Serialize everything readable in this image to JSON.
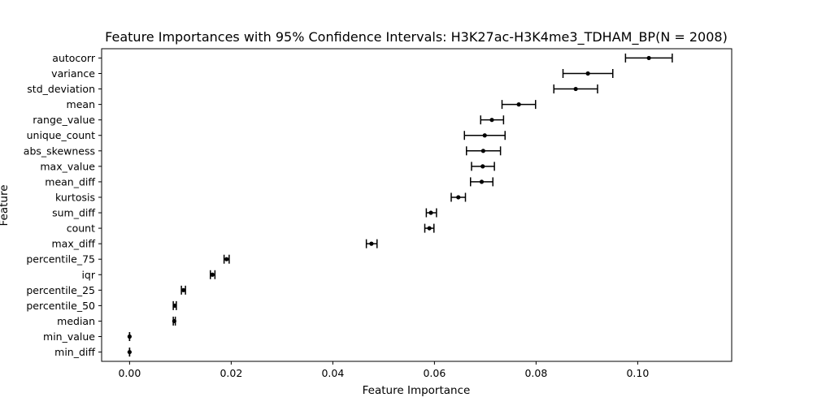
{
  "chart_data": {
    "type": "scatter",
    "title": "Feature Importances with 95% Confidence Intervals: H3K27ac-H3K4me3_TDHAM_BP(N = 2008)",
    "xlabel": "Feature Importance",
    "ylabel": "Feature",
    "xlim": [
      -0.0055,
      0.1185
    ],
    "xticks": [
      0.0,
      0.02,
      0.04,
      0.06,
      0.08,
      0.1
    ],
    "xtick_labels": [
      "0.00",
      "0.02",
      "0.04",
      "0.06",
      "0.08",
      "0.10"
    ],
    "grid": false,
    "legend": "none",
    "color": "#000000",
    "points": [
      {
        "feature": "autocorr",
        "value": 0.1022,
        "ci_low": 0.0976,
        "ci_high": 0.1068
      },
      {
        "feature": "variance",
        "value": 0.0902,
        "ci_low": 0.0853,
        "ci_high": 0.0951
      },
      {
        "feature": "std_deviation",
        "value": 0.0878,
        "ci_low": 0.0835,
        "ci_high": 0.0921
      },
      {
        "feature": "mean",
        "value": 0.0766,
        "ci_low": 0.0733,
        "ci_high": 0.0799
      },
      {
        "feature": "range_value",
        "value": 0.0713,
        "ci_low": 0.0691,
        "ci_high": 0.0736
      },
      {
        "feature": "unique_count",
        "value": 0.0699,
        "ci_low": 0.0659,
        "ci_high": 0.0739
      },
      {
        "feature": "abs_skewness",
        "value": 0.0696,
        "ci_low": 0.0663,
        "ci_high": 0.073
      },
      {
        "feature": "max_value",
        "value": 0.0695,
        "ci_low": 0.0673,
        "ci_high": 0.0718
      },
      {
        "feature": "mean_diff",
        "value": 0.0693,
        "ci_low": 0.0671,
        "ci_high": 0.0715
      },
      {
        "feature": "kurtosis",
        "value": 0.0647,
        "ci_low": 0.0633,
        "ci_high": 0.0661
      },
      {
        "feature": "sum_diff",
        "value": 0.0593,
        "ci_low": 0.0584,
        "ci_high": 0.0604
      },
      {
        "feature": "count",
        "value": 0.059,
        "ci_low": 0.0581,
        "ci_high": 0.0599
      },
      {
        "feature": "max_diff",
        "value": 0.0476,
        "ci_low": 0.0466,
        "ci_high": 0.0487
      },
      {
        "feature": "percentile_75",
        "value": 0.0191,
        "ci_low": 0.0186,
        "ci_high": 0.0196
      },
      {
        "feature": "iqr",
        "value": 0.0163,
        "ci_low": 0.0159,
        "ci_high": 0.0168
      },
      {
        "feature": "percentile_25",
        "value": 0.0106,
        "ci_low": 0.0102,
        "ci_high": 0.011
      },
      {
        "feature": "percentile_50",
        "value": 0.0089,
        "ci_low": 0.0086,
        "ci_high": 0.0092
      },
      {
        "feature": "median",
        "value": 0.0088,
        "ci_low": 0.0086,
        "ci_high": 0.009
      },
      {
        "feature": "min_value",
        "value": 0.0,
        "ci_low": 0.0,
        "ci_high": 0.0
      },
      {
        "feature": "min_diff",
        "value": 0.0,
        "ci_low": 0.0,
        "ci_high": 0.0
      }
    ]
  }
}
